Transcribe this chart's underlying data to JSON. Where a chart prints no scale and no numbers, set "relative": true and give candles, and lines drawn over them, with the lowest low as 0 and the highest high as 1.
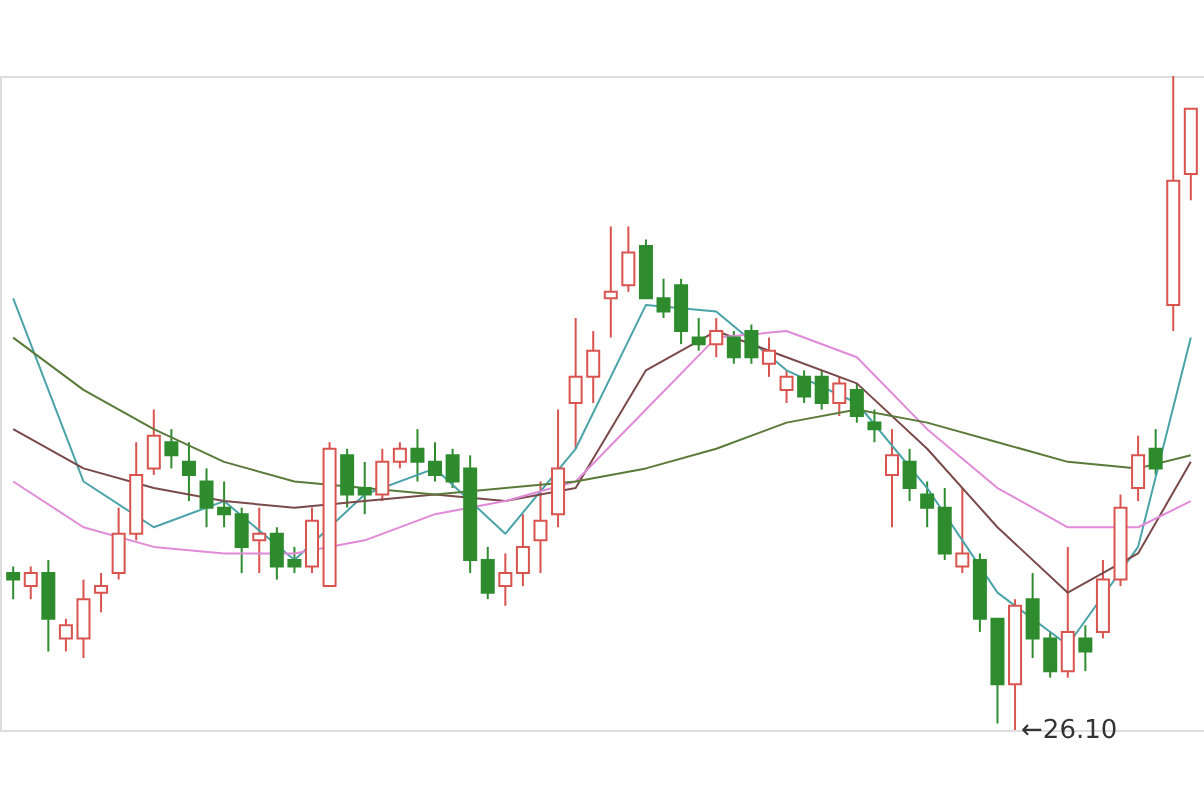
{
  "chart_data": {
    "type": "candlestick",
    "relative": true,
    "categories": [
      null,
      null,
      null,
      null,
      null,
      null,
      null,
      null,
      null,
      null,
      null,
      null,
      null,
      null,
      null,
      null,
      null,
      null,
      null,
      null,
      null,
      null,
      null,
      null,
      null,
      null,
      null,
      null,
      null,
      null,
      null,
      null,
      null,
      null,
      null,
      null,
      null,
      null,
      null,
      null,
      null,
      null,
      null,
      null,
      null,
      null,
      null,
      null,
      null,
      null,
      null,
      null,
      null,
      null,
      null,
      null,
      null,
      null,
      null,
      null,
      null,
      null,
      null,
      null,
      null,
      null,
      null,
      null
    ],
    "ohlc": [
      [
        0.24,
        0.25,
        0.2,
        0.23
      ],
      [
        0.22,
        0.25,
        0.2,
        0.24
      ],
      [
        0.24,
        0.26,
        0.12,
        0.17
      ],
      [
        0.14,
        0.17,
        0.12,
        0.16
      ],
      [
        0.14,
        0.23,
        0.11,
        0.2
      ],
      [
        0.21,
        0.24,
        0.18,
        0.22
      ],
      [
        0.24,
        0.34,
        0.23,
        0.3
      ],
      [
        0.3,
        0.44,
        0.29,
        0.39
      ],
      [
        0.4,
        0.49,
        0.39,
        0.45
      ],
      [
        0.44,
        0.46,
        0.4,
        0.42
      ],
      [
        0.41,
        0.44,
        0.35,
        0.39
      ],
      [
        0.38,
        0.4,
        0.31,
        0.34
      ],
      [
        0.34,
        0.38,
        0.31,
        0.33
      ],
      [
        0.33,
        0.34,
        0.24,
        0.28
      ],
      [
        0.29,
        0.34,
        0.24,
        0.3
      ],
      [
        0.3,
        0.31,
        0.23,
        0.25
      ],
      [
        0.26,
        0.28,
        0.24,
        0.25
      ],
      [
        0.25,
        0.34,
        0.24,
        0.32
      ],
      [
        0.22,
        0.44,
        0.22,
        0.43
      ],
      [
        0.42,
        0.43,
        0.34,
        0.36
      ],
      [
        0.37,
        0.41,
        0.33,
        0.36
      ],
      [
        0.36,
        0.43,
        0.35,
        0.41
      ],
      [
        0.41,
        0.44,
        0.4,
        0.43
      ],
      [
        0.43,
        0.46,
        0.38,
        0.41
      ],
      [
        0.41,
        0.44,
        0.38,
        0.39
      ],
      [
        0.42,
        0.43,
        0.37,
        0.38
      ],
      [
        0.4,
        0.42,
        0.24,
        0.26
      ],
      [
        0.26,
        0.28,
        0.2,
        0.21
      ],
      [
        0.22,
        0.27,
        0.19,
        0.24
      ],
      [
        0.24,
        0.33,
        0.22,
        0.28
      ],
      [
        0.29,
        0.38,
        0.24,
        0.32
      ],
      [
        0.33,
        0.49,
        0.31,
        0.4
      ],
      [
        0.5,
        0.63,
        0.43,
        0.54
      ],
      [
        0.54,
        0.61,
        0.5,
        0.58
      ],
      [
        0.66,
        0.77,
        0.6,
        0.67
      ],
      [
        0.68,
        0.77,
        0.67,
        0.73
      ],
      [
        0.74,
        0.75,
        0.66,
        0.66
      ],
      [
        0.66,
        0.69,
        0.63,
        0.64
      ],
      [
        0.68,
        0.69,
        0.59,
        0.61
      ],
      [
        0.6,
        0.63,
        0.58,
        0.59
      ],
      [
        0.59,
        0.63,
        0.57,
        0.61
      ],
      [
        0.6,
        0.61,
        0.56,
        0.57
      ],
      [
        0.61,
        0.62,
        0.56,
        0.57
      ],
      [
        0.56,
        0.6,
        0.54,
        0.58
      ],
      [
        0.52,
        0.55,
        0.5,
        0.54
      ],
      [
        0.54,
        0.55,
        0.5,
        0.51
      ],
      [
        0.54,
        0.55,
        0.49,
        0.5
      ],
      [
        0.5,
        0.54,
        0.48,
        0.53
      ],
      [
        0.52,
        0.53,
        0.47,
        0.48
      ],
      [
        0.47,
        0.49,
        0.44,
        0.46
      ],
      [
        0.39,
        0.46,
        0.31,
        0.42
      ],
      [
        0.41,
        0.43,
        0.35,
        0.37
      ],
      [
        0.36,
        0.38,
        0.31,
        0.34
      ],
      [
        0.34,
        0.37,
        0.26,
        0.27
      ],
      [
        0.25,
        0.37,
        0.24,
        0.27
      ],
      [
        0.26,
        0.27,
        0.15,
        0.17
      ],
      [
        0.17,
        0.17,
        0.01,
        0.07
      ],
      [
        0.07,
        0.2,
        0,
        0.19
      ],
      [
        0.2,
        0.24,
        0.11,
        0.14
      ],
      [
        0.14,
        0.15,
        0.08,
        0.09
      ],
      [
        0.09,
        0.28,
        0.08,
        0.15
      ],
      [
        0.14,
        0.16,
        0.09,
        0.12
      ],
      [
        0.15,
        0.26,
        0.14,
        0.23
      ],
      [
        0.23,
        0.36,
        0.22,
        0.34
      ],
      [
        0.37,
        0.45,
        0.35,
        0.42
      ],
      [
        0.43,
        0.46,
        0.39,
        0.4
      ],
      [
        0.65,
        1,
        0.61,
        0.84
      ],
      [
        0.85,
        0.95,
        0.81,
        0.95
      ]
    ],
    "series": [
      {
        "type": "line",
        "color": "#4aa3a8",
        "values": [
          0.66,
          null,
          null,
          null,
          0.38,
          null,
          null,
          null,
          0.31,
          null,
          null,
          null,
          0.35,
          null,
          null,
          null,
          0.26,
          null,
          null,
          null,
          0.36,
          null,
          null,
          null,
          0.4,
          null,
          null,
          null,
          0.3,
          null,
          null,
          null,
          0.43,
          null,
          null,
          null,
          0.65,
          null,
          null,
          null,
          0.64,
          null,
          null,
          null,
          0.55,
          null,
          null,
          null,
          0.5,
          null,
          null,
          null,
          0.37,
          null,
          null,
          null,
          0.21,
          null,
          null,
          null,
          0.13,
          null,
          null,
          null,
          0.28,
          null,
          null,
          0.6
        ]
      },
      {
        "type": "line",
        "color": "#7a4a4a",
        "values": [
          0.46,
          null,
          null,
          null,
          0.4,
          null,
          null,
          null,
          0.37,
          null,
          null,
          null,
          0.35,
          null,
          null,
          null,
          0.34,
          null,
          null,
          null,
          0.35,
          null,
          null,
          null,
          0.36,
          null,
          null,
          null,
          0.35,
          null,
          null,
          null,
          0.37,
          null,
          null,
          null,
          0.55,
          null,
          null,
          null,
          0.61,
          null,
          null,
          null,
          0.57,
          null,
          null,
          null,
          0.53,
          null,
          null,
          null,
          0.43,
          null,
          null,
          null,
          0.31,
          null,
          null,
          null,
          0.21,
          null,
          null,
          null,
          0.27,
          null,
          null,
          0.41
        ]
      },
      {
        "type": "line",
        "color": "#e08ad8",
        "values": [
          0.38,
          null,
          null,
          null,
          0.31,
          null,
          null,
          null,
          0.28,
          null,
          null,
          null,
          0.27,
          null,
          null,
          null,
          0.27,
          null,
          null,
          null,
          0.29,
          null,
          null,
          null,
          0.33,
          null,
          null,
          null,
          0.35,
          null,
          null,
          null,
          0.38,
          null,
          null,
          null,
          0.49,
          null,
          null,
          null,
          0.6,
          null,
          null,
          null,
          0.61,
          null,
          null,
          null,
          0.57,
          null,
          null,
          null,
          0.46,
          null,
          null,
          null,
          0.37,
          null,
          null,
          null,
          0.31,
          null,
          null,
          null,
          0.31,
          null,
          null,
          0.35
        ]
      },
      {
        "type": "line",
        "color": "#5a7a3a",
        "values": [
          0.6,
          null,
          null,
          null,
          0.52,
          null,
          null,
          null,
          0.46,
          null,
          null,
          null,
          0.41,
          null,
          null,
          null,
          0.38,
          null,
          null,
          null,
          0.37,
          null,
          null,
          null,
          0.36,
          null,
          null,
          null,
          0.37,
          null,
          null,
          null,
          0.38,
          null,
          null,
          null,
          0.4,
          null,
          null,
          null,
          0.43,
          null,
          null,
          null,
          0.47,
          null,
          null,
          null,
          0.49,
          null,
          null,
          null,
          0.47,
          null,
          null,
          null,
          0.44,
          null,
          null,
          null,
          0.41,
          null,
          null,
          null,
          0.4,
          null,
          null,
          0.42
        ]
      }
    ],
    "annotations": [
      "←26.10"
    ]
  }
}
